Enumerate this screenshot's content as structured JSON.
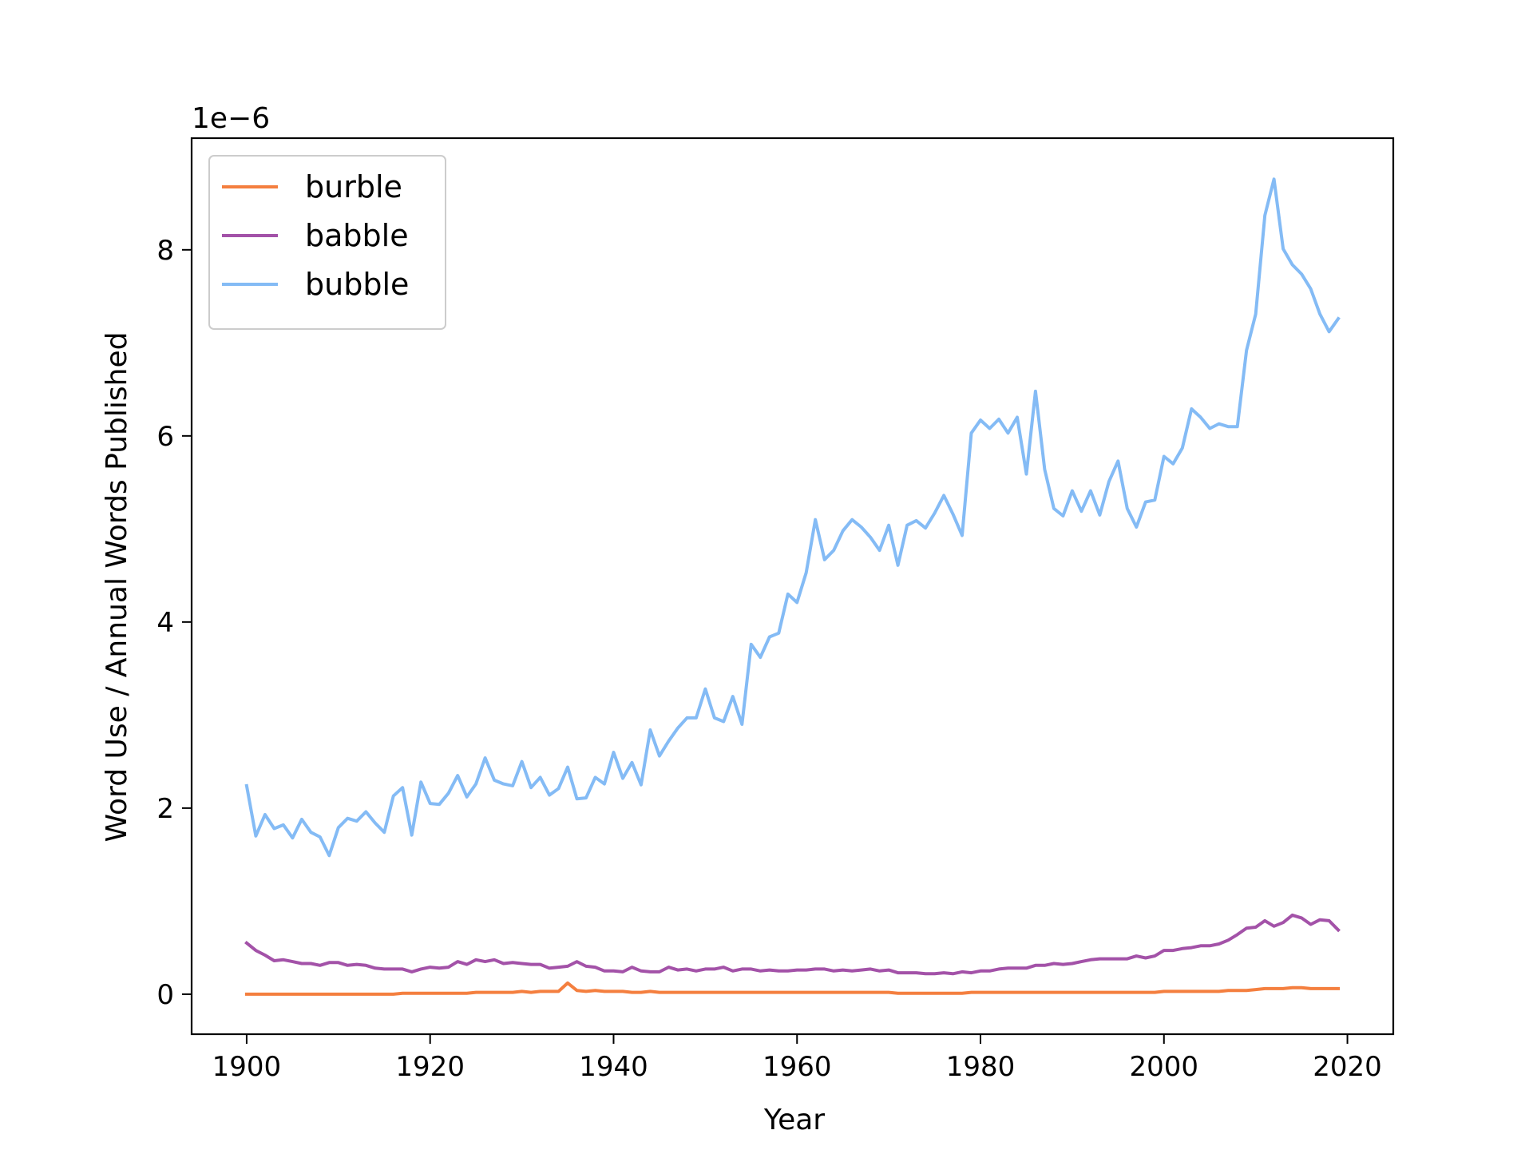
{
  "chart_data": {
    "type": "line",
    "title": "",
    "xlabel": "Year",
    "ylabel": "Word Use / Annual Words Published",
    "y_offset_text": "1e−6",
    "xlim": [
      1894,
      2025
    ],
    "ylim": [
      -0.43,
      9.2
    ],
    "xticks": [
      1900,
      1920,
      1940,
      1960,
      1980,
      2000,
      2020
    ],
    "yticks": [
      0,
      2,
      4,
      6,
      8
    ],
    "legend_position": "top-left",
    "grid": false,
    "x": [
      1900,
      1901,
      1902,
      1903,
      1904,
      1905,
      1906,
      1907,
      1908,
      1909,
      1910,
      1911,
      1912,
      1913,
      1914,
      1915,
      1916,
      1917,
      1918,
      1919,
      1920,
      1921,
      1922,
      1923,
      1924,
      1925,
      1926,
      1927,
      1928,
      1929,
      1930,
      1931,
      1932,
      1933,
      1934,
      1935,
      1936,
      1937,
      1938,
      1939,
      1940,
      1941,
      1942,
      1943,
      1944,
      1945,
      1946,
      1947,
      1948,
      1949,
      1950,
      1951,
      1952,
      1953,
      1954,
      1955,
      1956,
      1957,
      1958,
      1959,
      1960,
      1961,
      1962,
      1963,
      1964,
      1965,
      1966,
      1967,
      1968,
      1969,
      1970,
      1971,
      1972,
      1973,
      1974,
      1975,
      1976,
      1977,
      1978,
      1979,
      1980,
      1981,
      1982,
      1983,
      1984,
      1985,
      1986,
      1987,
      1988,
      1989,
      1990,
      1991,
      1992,
      1993,
      1994,
      1995,
      1996,
      1997,
      1998,
      1999,
      2000,
      2001,
      2002,
      2003,
      2004,
      2005,
      2006,
      2007,
      2008,
      2009,
      2010,
      2011,
      2012,
      2013,
      2014,
      2015,
      2016,
      2017,
      2018,
      2019
    ],
    "series": [
      {
        "name": "burble",
        "color": "#f47f3f",
        "values": [
          0.0,
          0.0,
          0.0,
          0.0,
          0.0,
          0.0,
          0.0,
          0.0,
          0.0,
          0.0,
          0.0,
          0.0,
          0.0,
          0.0,
          0.0,
          0.0,
          0.0,
          0.01,
          0.01,
          0.01,
          0.01,
          0.01,
          0.01,
          0.01,
          0.01,
          0.02,
          0.02,
          0.02,
          0.02,
          0.02,
          0.03,
          0.02,
          0.03,
          0.03,
          0.03,
          0.12,
          0.04,
          0.03,
          0.04,
          0.03,
          0.03,
          0.03,
          0.02,
          0.02,
          0.03,
          0.02,
          0.02,
          0.02,
          0.02,
          0.02,
          0.02,
          0.02,
          0.02,
          0.02,
          0.02,
          0.02,
          0.02,
          0.02,
          0.02,
          0.02,
          0.02,
          0.02,
          0.02,
          0.02,
          0.02,
          0.02,
          0.02,
          0.02,
          0.02,
          0.02,
          0.02,
          0.01,
          0.01,
          0.01,
          0.01,
          0.01,
          0.01,
          0.01,
          0.01,
          0.02,
          0.02,
          0.02,
          0.02,
          0.02,
          0.02,
          0.02,
          0.02,
          0.02,
          0.02,
          0.02,
          0.02,
          0.02,
          0.02,
          0.02,
          0.02,
          0.02,
          0.02,
          0.02,
          0.02,
          0.02,
          0.03,
          0.03,
          0.03,
          0.03,
          0.03,
          0.03,
          0.03,
          0.04,
          0.04,
          0.04,
          0.05,
          0.06,
          0.06,
          0.06,
          0.07,
          0.07,
          0.06,
          0.06,
          0.06,
          0.06
        ]
      },
      {
        "name": "babble",
        "color": "#a352a8",
        "values": [
          0.55,
          0.47,
          0.42,
          0.36,
          0.37,
          0.35,
          0.33,
          0.33,
          0.31,
          0.34,
          0.34,
          0.31,
          0.32,
          0.31,
          0.28,
          0.27,
          0.27,
          0.27,
          0.24,
          0.27,
          0.29,
          0.28,
          0.29,
          0.35,
          0.32,
          0.37,
          0.35,
          0.37,
          0.33,
          0.34,
          0.33,
          0.32,
          0.32,
          0.28,
          0.29,
          0.3,
          0.35,
          0.3,
          0.29,
          0.25,
          0.25,
          0.24,
          0.29,
          0.25,
          0.24,
          0.24,
          0.29,
          0.26,
          0.27,
          0.25,
          0.27,
          0.27,
          0.29,
          0.25,
          0.27,
          0.27,
          0.25,
          0.26,
          0.25,
          0.25,
          0.26,
          0.26,
          0.27,
          0.27,
          0.25,
          0.26,
          0.25,
          0.26,
          0.27,
          0.25,
          0.26,
          0.23,
          0.23,
          0.23,
          0.22,
          0.22,
          0.23,
          0.22,
          0.24,
          0.23,
          0.25,
          0.25,
          0.27,
          0.28,
          0.28,
          0.28,
          0.31,
          0.31,
          0.33,
          0.32,
          0.33,
          0.35,
          0.37,
          0.38,
          0.38,
          0.38,
          0.38,
          0.41,
          0.39,
          0.41,
          0.47,
          0.47,
          0.49,
          0.5,
          0.52,
          0.52,
          0.54,
          0.58,
          0.64,
          0.71,
          0.72,
          0.79,
          0.73,
          0.77,
          0.85,
          0.82,
          0.75,
          0.8,
          0.79,
          0.69
        ]
      },
      {
        "name": "bubble",
        "color": "#84bbf5",
        "values": [
          2.24,
          1.7,
          1.93,
          1.78,
          1.82,
          1.68,
          1.88,
          1.74,
          1.69,
          1.49,
          1.79,
          1.89,
          1.86,
          1.96,
          1.84,
          1.74,
          2.13,
          2.22,
          1.71,
          2.28,
          2.05,
          2.04,
          2.16,
          2.35,
          2.12,
          2.26,
          2.54,
          2.3,
          2.26,
          2.24,
          2.5,
          2.22,
          2.33,
          2.14,
          2.21,
          2.44,
          2.1,
          2.11,
          2.33,
          2.26,
          2.6,
          2.32,
          2.49,
          2.25,
          2.84,
          2.56,
          2.72,
          2.86,
          2.97,
          2.97,
          3.28,
          2.97,
          2.93,
          3.2,
          2.9,
          3.76,
          3.62,
          3.84,
          3.88,
          4.3,
          4.21,
          4.53,
          5.1,
          4.67,
          4.77,
          4.98,
          5.1,
          5.02,
          4.91,
          4.77,
          5.04,
          4.61,
          5.04,
          5.09,
          5.01,
          5.17,
          5.36,
          5.16,
          4.93,
          6.03,
          6.17,
          6.08,
          6.18,
          6.03,
          6.2,
          5.59,
          6.48,
          5.64,
          5.22,
          5.14,
          5.41,
          5.19,
          5.41,
          5.15,
          5.51,
          5.73,
          5.22,
          5.02,
          5.29,
          5.31,
          5.78,
          5.7,
          5.87,
          6.29,
          6.2,
          6.08,
          6.13,
          6.1,
          6.1,
          6.92,
          7.31,
          8.37,
          8.76,
          8.01,
          7.84,
          7.74,
          7.58,
          7.31,
          7.12,
          7.26
        ]
      }
    ]
  }
}
